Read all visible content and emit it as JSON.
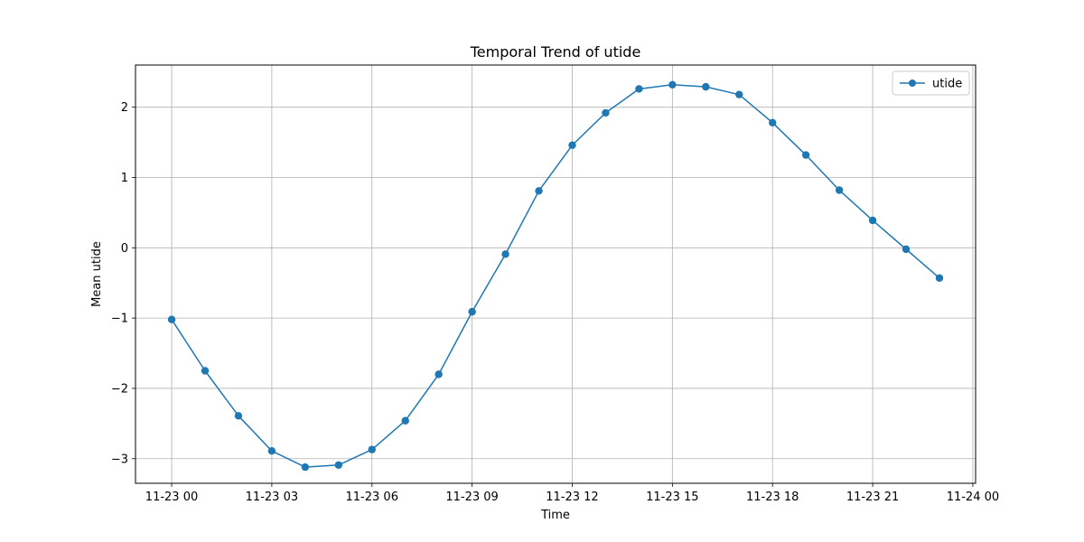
{
  "chart_data": {
    "type": "line",
    "title": "Temporal Trend of utide",
    "xlabel": "Time",
    "ylabel": "Mean utide",
    "x_tick_labels": [
      "11-23 00",
      "11-23 03",
      "11-23 06",
      "11-23 09",
      "11-23 12",
      "11-23 15",
      "11-23 18",
      "11-23 21",
      "11-24 00"
    ],
    "y_tick_labels": [
      "−3",
      "−2",
      "−1",
      "0",
      "1",
      "2"
    ],
    "y_ticks": [
      -3,
      -2,
      -1,
      0,
      1,
      2
    ],
    "ylim": [
      -3.35,
      2.6
    ],
    "xlim": [
      "2023-11-22 22:55",
      "2023-11-24 00:05"
    ],
    "grid": true,
    "legend_position": "top-right",
    "x": [
      "2023-11-23 00:00",
      "2023-11-23 01:00",
      "2023-11-23 02:00",
      "2023-11-23 03:00",
      "2023-11-23 04:00",
      "2023-11-23 05:00",
      "2023-11-23 06:00",
      "2023-11-23 07:00",
      "2023-11-23 08:00",
      "2023-11-23 09:00",
      "2023-11-23 10:00",
      "2023-11-23 11:00",
      "2023-11-23 12:00",
      "2023-11-23 13:00",
      "2023-11-23 14:00",
      "2023-11-23 15:00",
      "2023-11-23 16:00",
      "2023-11-23 17:00",
      "2023-11-23 18:00",
      "2023-11-23 19:00",
      "2023-11-23 20:00",
      "2023-11-23 21:00",
      "2023-11-23 22:00",
      "2023-11-23 23:00"
    ],
    "series": [
      {
        "name": "utide",
        "color": "#1f77b4",
        "marker": "circle",
        "values": [
          -1.02,
          -1.75,
          -2.39,
          -2.89,
          -3.12,
          -3.09,
          -2.87,
          -2.46,
          -1.8,
          -0.91,
          -0.09,
          0.81,
          1.46,
          1.92,
          2.26,
          2.32,
          2.29,
          2.18,
          1.78,
          1.32,
          0.82,
          0.39,
          -0.02,
          -0.43
        ]
      }
    ]
  }
}
